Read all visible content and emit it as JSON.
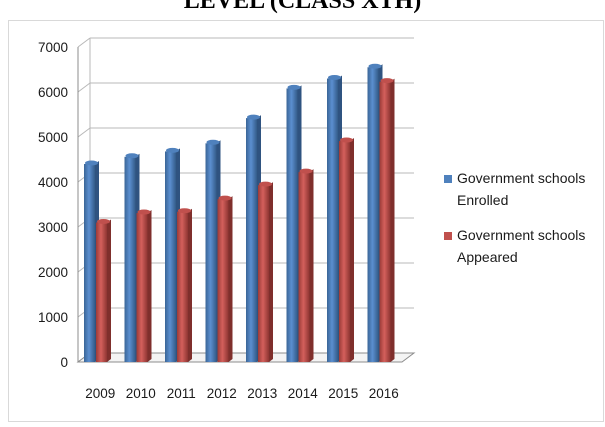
{
  "chart_data": {
    "type": "bar",
    "title": "LEVEL (CLASS XTH)",
    "categories": [
      "2009",
      "2010",
      "2011",
      "2012",
      "2013",
      "2014",
      "2015",
      "2016"
    ],
    "series": [
      {
        "name_lines": [
          "Government schools",
          "Enrolled"
        ],
        "color": "#4f81bd",
        "values": [
          4400,
          4560,
          4680,
          4860,
          5420,
          6080,
          6300,
          6550
        ]
      },
      {
        "name_lines": [
          "Government schools",
          "Appeared"
        ],
        "color": "#c0504d",
        "values": [
          3100,
          3310,
          3340,
          3620,
          3930,
          4220,
          4910,
          6230
        ]
      }
    ],
    "yticks": [
      "0",
      "1000",
      "2000",
      "3000",
      "4000",
      "5000",
      "6000",
      "7000"
    ],
    "ylim": [
      0,
      7000
    ],
    "legend_position": "right",
    "grid": true
  }
}
